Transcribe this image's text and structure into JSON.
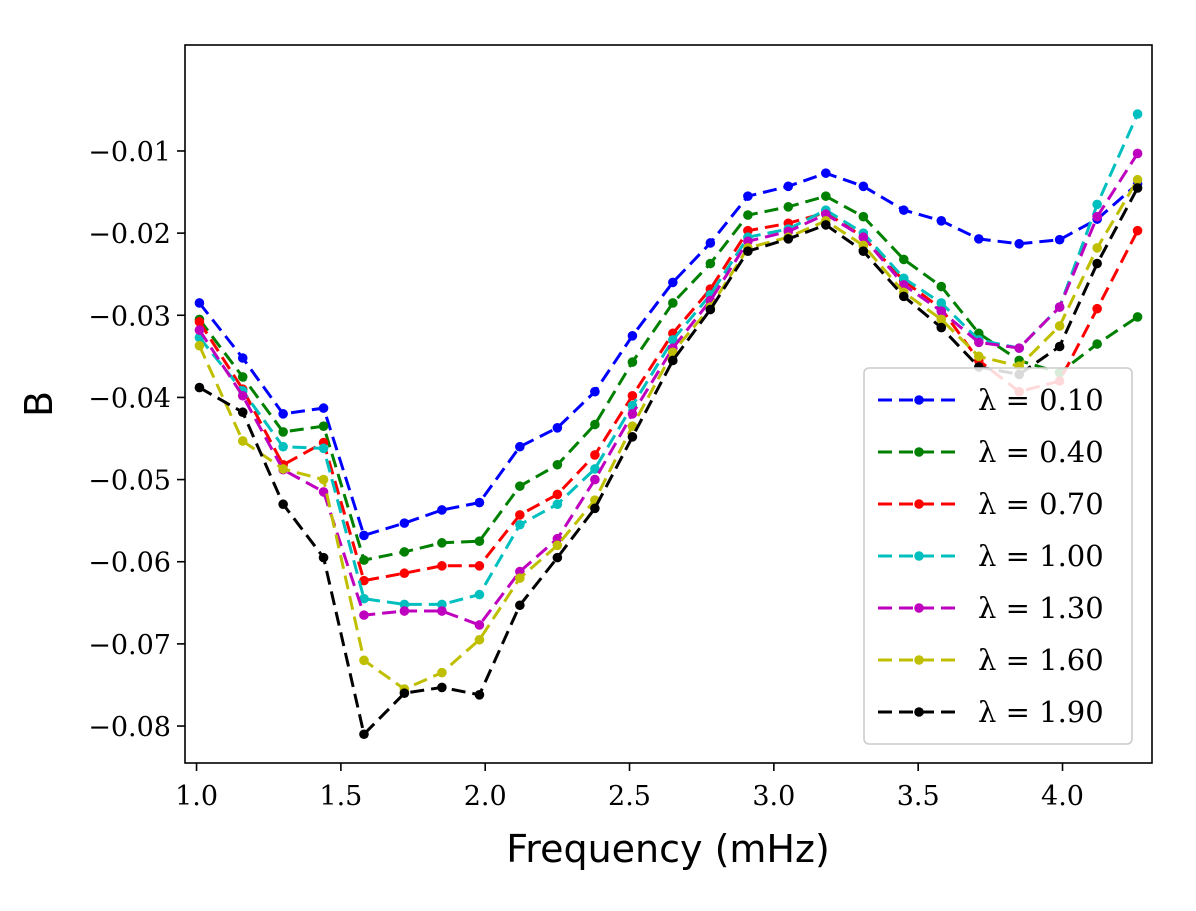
{
  "chart_data": {
    "type": "line",
    "title": "",
    "xlabel": "Frequency (mHz)",
    "ylabel": "B",
    "xlim": [
      0.96,
      4.31
    ],
    "ylim": [
      -0.0845,
      0.0029
    ],
    "xticks": [
      1.0,
      1.5,
      2.0,
      2.5,
      3.0,
      3.5,
      4.0
    ],
    "xtick_labels": [
      "1.0",
      "1.5",
      "2.0",
      "2.5",
      "3.0",
      "3.5",
      "4.0"
    ],
    "yticks": [
      -0.01,
      -0.02,
      -0.03,
      -0.04,
      -0.05,
      -0.06,
      -0.07,
      -0.08
    ],
    "ytick_labels": [
      "−0.01",
      "−0.02",
      "−0.03",
      "−0.04",
      "−0.05",
      "−0.06",
      "−0.07",
      "−0.08"
    ],
    "grid": false,
    "legend_position": "lower-right",
    "line_style": "dashed",
    "marker": "circle",
    "x": [
      1.01,
      1.16,
      1.3,
      1.44,
      1.58,
      1.72,
      1.85,
      1.98,
      2.12,
      2.25,
      2.38,
      2.51,
      2.65,
      2.78,
      2.91,
      3.05,
      3.18,
      3.31,
      3.45,
      3.58,
      3.71,
      3.85,
      3.99,
      4.12,
      4.26
    ],
    "series": [
      {
        "name": "λ = 0.10",
        "color": "#0000ff",
        "values": [
          -0.0285,
          -0.0352,
          -0.042,
          -0.0413,
          -0.0568,
          -0.0553,
          -0.0537,
          -0.0528,
          -0.046,
          -0.0437,
          -0.0393,
          -0.0325,
          -0.026,
          -0.0212,
          -0.0155,
          -0.0143,
          -0.0127,
          -0.0143,
          -0.0172,
          -0.0185,
          -0.0207,
          -0.0213,
          -0.0208,
          -0.0183,
          -0.014
        ]
      },
      {
        "name": "λ = 0.40",
        "color": "#008000",
        "values": [
          -0.0305,
          -0.0375,
          -0.0442,
          -0.0435,
          -0.0598,
          -0.0588,
          -0.0577,
          -0.0575,
          -0.0508,
          -0.0482,
          -0.0433,
          -0.0357,
          -0.0285,
          -0.0237,
          -0.0178,
          -0.0168,
          -0.0155,
          -0.018,
          -0.0232,
          -0.0265,
          -0.0322,
          -0.0355,
          -0.037,
          -0.0335,
          -0.0302
        ]
      },
      {
        "name": "λ = 0.70",
        "color": "#ff0000",
        "values": [
          -0.0308,
          -0.039,
          -0.0482,
          -0.0455,
          -0.0623,
          -0.0614,
          -0.0605,
          -0.0605,
          -0.0543,
          -0.0518,
          -0.047,
          -0.0398,
          -0.0322,
          -0.0268,
          -0.0197,
          -0.0188,
          -0.0175,
          -0.0205,
          -0.0258,
          -0.0292,
          -0.0355,
          -0.0393,
          -0.038,
          -0.0292,
          -0.0197
        ]
      },
      {
        "name": "λ = 1.00",
        "color": "#00bfbf",
        "values": [
          -0.0327,
          -0.0392,
          -0.046,
          -0.0462,
          -0.0645,
          -0.0652,
          -0.0652,
          -0.064,
          -0.0555,
          -0.053,
          -0.0487,
          -0.041,
          -0.033,
          -0.0275,
          -0.0205,
          -0.0195,
          -0.0172,
          -0.02,
          -0.0255,
          -0.0285,
          -0.033,
          -0.034,
          -0.029,
          -0.0165,
          -0.0055
        ]
      },
      {
        "name": "λ = 1.30",
        "color": "#bf00bf",
        "values": [
          -0.0318,
          -0.0398,
          -0.0488,
          -0.0515,
          -0.0665,
          -0.066,
          -0.066,
          -0.0677,
          -0.0612,
          -0.0572,
          -0.05,
          -0.042,
          -0.034,
          -0.0282,
          -0.021,
          -0.0198,
          -0.0177,
          -0.0205,
          -0.0263,
          -0.0295,
          -0.0333,
          -0.034,
          -0.029,
          -0.018,
          -0.0103
        ]
      },
      {
        "name": "λ = 1.60",
        "color": "#bfbf00",
        "values": [
          -0.0337,
          -0.0453,
          -0.0487,
          -0.05,
          -0.072,
          -0.0755,
          -0.0735,
          -0.0695,
          -0.062,
          -0.058,
          -0.0525,
          -0.0435,
          -0.0345,
          -0.029,
          -0.0218,
          -0.0205,
          -0.0185,
          -0.0215,
          -0.0272,
          -0.0305,
          -0.035,
          -0.0362,
          -0.0313,
          -0.0218,
          -0.0135
        ]
      },
      {
        "name": "λ = 1.90",
        "color": "#000000",
        "values": [
          -0.0388,
          -0.0418,
          -0.053,
          -0.0595,
          -0.081,
          -0.076,
          -0.0753,
          -0.0762,
          -0.0653,
          -0.0595,
          -0.0535,
          -0.0448,
          -0.0355,
          -0.0293,
          -0.0222,
          -0.0207,
          -0.019,
          -0.0222,
          -0.0277,
          -0.0315,
          -0.0363,
          -0.0372,
          -0.0338,
          -0.0237,
          -0.0145
        ]
      }
    ]
  }
}
